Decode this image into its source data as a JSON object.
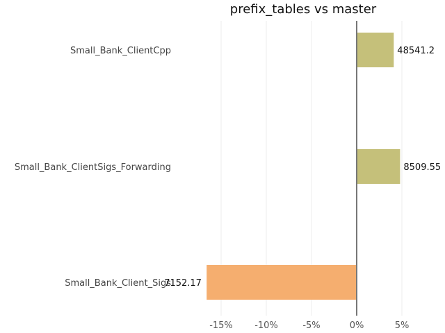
{
  "chart_data": {
    "type": "bar",
    "orientation": "horizontal",
    "title": "prefix_tables vs master",
    "xlabel": "",
    "ylabel": "",
    "xlim": [
      -0.18,
      0.095
    ],
    "x_ticks": [
      -0.15,
      -0.1,
      -0.05,
      0,
      0.05
    ],
    "x_tick_labels": [
      "-15%",
      "-10%",
      "-5%",
      "0%",
      "5%"
    ],
    "grid": true,
    "categories": [
      "Small_Bank_ClientCpp",
      "Small_Bank_ClientSigs_Forwarding",
      "Small_Bank_Client_Sigs"
    ],
    "values": [
      0.041,
      0.048,
      -0.166
    ],
    "data_labels": [
      "48541.2",
      "8509.55",
      "7152.17"
    ],
    "colors": [
      "#c5c07a",
      "#c5c07a",
      "#f5ae6f"
    ]
  }
}
